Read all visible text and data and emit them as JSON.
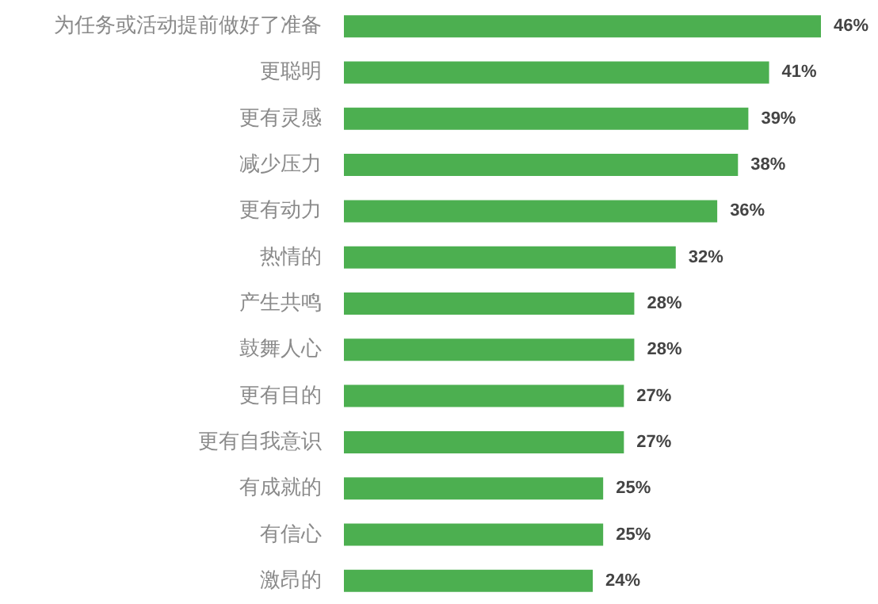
{
  "chart_data": {
    "type": "bar",
    "orientation": "horizontal",
    "color": "#4caf50",
    "categories": [
      "为任务或活动提前做好了准备",
      "更聪明",
      "更有灵感",
      "减少压力",
      "更有动力",
      "热情的",
      "产生共鸣",
      "鼓舞人心",
      "更有目的",
      "更有自我意识",
      "有成就的",
      "有信心",
      "激昂的"
    ],
    "values": [
      46,
      41,
      39,
      38,
      36,
      32,
      28,
      28,
      27,
      27,
      25,
      25,
      24
    ],
    "value_labels": [
      "46%",
      "41%",
      "39%",
      "38%",
      "36%",
      "32%",
      "28%",
      "28%",
      "27%",
      "27%",
      "25%",
      "25%",
      "24%"
    ]
  }
}
